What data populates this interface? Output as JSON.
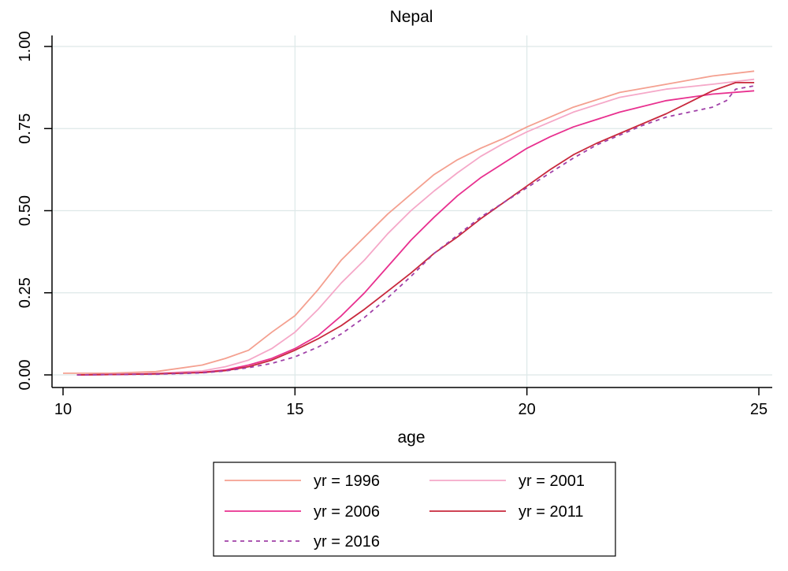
{
  "chart_data": {
    "type": "line",
    "title": "Nepal",
    "xlabel": "age",
    "ylabel": "",
    "xlim": [
      10,
      25
    ],
    "ylim": [
      0,
      1
    ],
    "xticks": [
      10,
      15,
      20,
      25
    ],
    "xtick_labels": [
      "10",
      "15",
      "20",
      "25"
    ],
    "yticks": [
      0,
      0.25,
      0.5,
      0.75,
      1
    ],
    "ytick_labels": [
      "0.00",
      "0.25",
      "0.50",
      "0.75",
      "1.00"
    ],
    "grid": true,
    "legend_position": "bottom",
    "series": [
      {
        "name": "yr = 1996",
        "color": "#f4a090",
        "dash": "",
        "x": [
          10,
          11,
          12,
          12.5,
          13,
          13.5,
          14,
          14.5,
          15,
          15.5,
          16,
          16.5,
          17,
          17.5,
          18,
          18.5,
          19,
          19.5,
          20,
          21,
          22,
          23,
          24,
          24.9
        ],
        "y": [
          0.005,
          0.005,
          0.01,
          0.02,
          0.03,
          0.05,
          0.075,
          0.13,
          0.18,
          0.26,
          0.35,
          0.42,
          0.49,
          0.55,
          0.61,
          0.655,
          0.69,
          0.72,
          0.755,
          0.815,
          0.86,
          0.885,
          0.91,
          0.925
        ]
      },
      {
        "name": "yr = 2001",
        "color": "#f5a8c8",
        "dash": "",
        "x": [
          10.3,
          11,
          12,
          13,
          13.5,
          14,
          14.5,
          15,
          15.5,
          16,
          16.5,
          17,
          17.5,
          18,
          18.5,
          19,
          19.5,
          20,
          21,
          22,
          23,
          24,
          24.9
        ],
        "y": [
          0,
          0.002,
          0.005,
          0.012,
          0.025,
          0.045,
          0.08,
          0.13,
          0.2,
          0.28,
          0.35,
          0.43,
          0.5,
          0.56,
          0.615,
          0.665,
          0.705,
          0.74,
          0.8,
          0.845,
          0.87,
          0.885,
          0.9
        ]
      },
      {
        "name": "yr = 2006",
        "color": "#e8308f",
        "dash": "",
        "x": [
          10.3,
          11,
          12,
          13,
          13.5,
          14,
          14.5,
          15,
          15.5,
          16,
          16.5,
          17,
          17.5,
          18,
          18.5,
          19,
          19.5,
          20,
          20.5,
          21,
          22,
          23,
          24,
          24.9
        ],
        "y": [
          0,
          0.001,
          0.003,
          0.008,
          0.015,
          0.03,
          0.05,
          0.08,
          0.12,
          0.18,
          0.25,
          0.33,
          0.41,
          0.48,
          0.545,
          0.6,
          0.645,
          0.69,
          0.725,
          0.755,
          0.8,
          0.835,
          0.855,
          0.865
        ]
      },
      {
        "name": "yr = 2011",
        "color": "#c8283c",
        "dash": "",
        "x": [
          10.3,
          11,
          12,
          13,
          13.5,
          14,
          14.5,
          15,
          15.5,
          16,
          16.5,
          17,
          17.5,
          18,
          18.5,
          19,
          19.5,
          20,
          20.5,
          21,
          21.5,
          22,
          22.5,
          23,
          23.5,
          24,
          24.5,
          24.9
        ],
        "y": [
          0,
          0.001,
          0.003,
          0.007,
          0.013,
          0.025,
          0.045,
          0.075,
          0.11,
          0.15,
          0.2,
          0.255,
          0.31,
          0.37,
          0.42,
          0.475,
          0.525,
          0.575,
          0.625,
          0.67,
          0.705,
          0.735,
          0.765,
          0.795,
          0.83,
          0.865,
          0.89,
          0.89
        ]
      },
      {
        "name": "yr = 2016",
        "color": "#a040a8",
        "dash": "5,5",
        "x": [
          10.3,
          11,
          12,
          13,
          13.5,
          14,
          14.5,
          15,
          15.5,
          16,
          16.5,
          17,
          17.5,
          18,
          18.5,
          19,
          19.5,
          20,
          20.5,
          21,
          21.5,
          22,
          22.5,
          23,
          23.5,
          24,
          24.3,
          24.5,
          24.9
        ],
        "y": [
          0,
          0.001,
          0.002,
          0.006,
          0.012,
          0.022,
          0.035,
          0.055,
          0.085,
          0.125,
          0.175,
          0.235,
          0.3,
          0.37,
          0.425,
          0.48,
          0.525,
          0.57,
          0.615,
          0.66,
          0.7,
          0.73,
          0.76,
          0.785,
          0.8,
          0.815,
          0.835,
          0.87,
          0.88
        ]
      }
    ]
  }
}
